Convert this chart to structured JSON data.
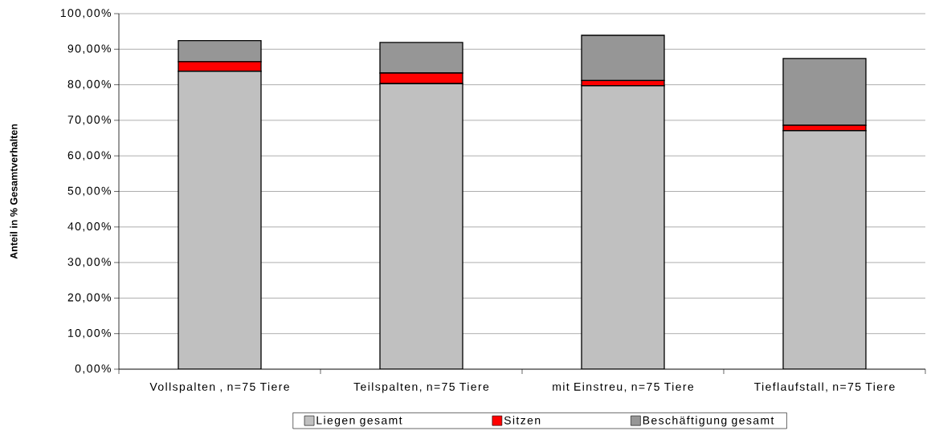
{
  "chart_data": {
    "type": "bar",
    "stacked": true,
    "categories": [
      "Vollspalten , n=75 Tiere",
      "Teilspalten, n=75 Tiere",
      "mit Einstreu, n=75 Tiere",
      "Tieflaufstall, n=75 Tiere"
    ],
    "series": [
      {
        "name": "Liegen gesamt",
        "color": "#c0c0c0",
        "values": [
          83.8,
          80.3,
          79.7,
          67.1
        ]
      },
      {
        "name": "Sitzen",
        "color": "#ff0000",
        "values": [
          2.7,
          3.0,
          1.5,
          1.5
        ]
      },
      {
        "name": "Beschäftigung gesamt",
        "color": "#969696",
        "values": [
          5.9,
          8.6,
          12.7,
          18.8
        ]
      }
    ],
    "ylabel": "Anteil in % Gesamtverhalten",
    "ylim": [
      0,
      100
    ],
    "yticks": [
      {
        "value": 0,
        "label": "0,00%"
      },
      {
        "value": 10,
        "label": "10,00%"
      },
      {
        "value": 20,
        "label": "20,00%"
      },
      {
        "value": 30,
        "label": "30,00%"
      },
      {
        "value": 40,
        "label": "40,00%"
      },
      {
        "value": 50,
        "label": "50,00%"
      },
      {
        "value": 60,
        "label": "60,00%"
      },
      {
        "value": 70,
        "label": "70,00%"
      },
      {
        "value": 80,
        "label": "80,00%"
      },
      {
        "value": 90,
        "label": "90,00%"
      },
      {
        "value": 100,
        "label": "100,00%"
      }
    ],
    "grid": "y",
    "legend": "bottom"
  }
}
